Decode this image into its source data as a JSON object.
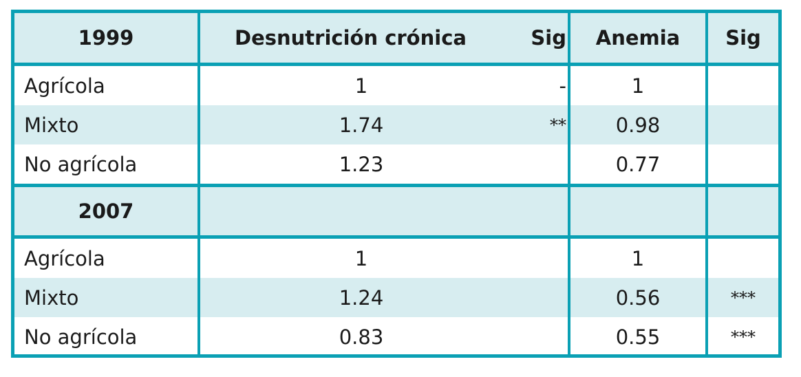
{
  "table": {
    "header": {
      "col_year": "1999",
      "col_desnutricion": "Desnutrición crónica",
      "col_sig1": "Sig",
      "col_anemia": "Anemia",
      "col_sig2": "Sig"
    },
    "rows_1999": [
      {
        "label": "Agrícola",
        "desnutricion": "1",
        "sig1": "-",
        "anemia": "1",
        "sig2": ""
      },
      {
        "label": "Mixto",
        "desnutricion": "1.74",
        "sig1": "**",
        "anemia": "0.98",
        "sig2": ""
      },
      {
        "label": "No agrícola",
        "desnutricion": "1.23",
        "sig1": "",
        "anemia": "0.77",
        "sig2": ""
      }
    ],
    "section_2007": {
      "year": "2007"
    },
    "rows_2007": [
      {
        "label": "Agrícola",
        "desnutricion": "1",
        "sig1": "",
        "anemia": "1",
        "sig2": ""
      },
      {
        "label": "Mixto",
        "desnutricion": "1.24",
        "sig1": "",
        "anemia": "0.56",
        "sig2": "***"
      },
      {
        "label": "No agrícola",
        "desnutricion": "0.83",
        "sig1": "",
        "anemia": "0.55",
        "sig2": "***"
      }
    ]
  },
  "colors": {
    "border": "#0aa0b4",
    "shade": "#d7edf0",
    "text": "#1a1a1a"
  }
}
